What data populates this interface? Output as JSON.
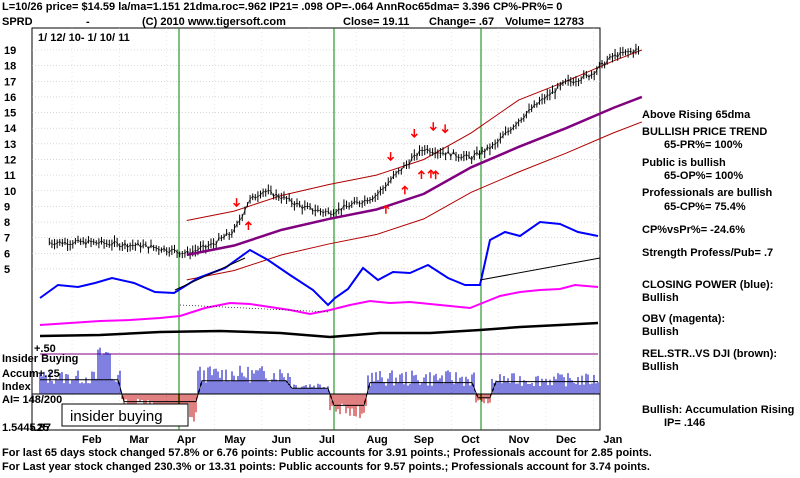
{
  "header": {
    "line1_left": "L=10/26  price= $14.59  la/ma=1.151 21dma.roc=.962 IP21= .098 OP=-.064 AnnRoc65dma= 3.396 CP%-PR%=  0",
    "symbol": "SPRD",
    "dash": "-",
    "copyright": "(C) 2010 www.tigersoft.com",
    "close": "Close=  19.11",
    "change": "Change= .67",
    "volume": "Volume= 12783",
    "date_range": "1/ 12/ 10- 1/ 10/ 11"
  },
  "right_panel": [
    "Above Rising 65dma",
    "BULLISH PRICE TREND",
    "65-PR%= 100%",
    "Public is bullish",
    "65-OP%= 100%",
    "Professionals are bullish",
    "65-CP%= 75.4%",
    "CP%vsPr%= -24.6%",
    "Strength Profess/Pub= .7",
    "CLOSING POWER (blue):",
    "Bullish",
    "OBV (magenta):",
    "Bullish",
    "REL.STR..VS DJI (brown):",
    "Bullish",
    "Bullish: Accumulation Rising",
    "IP= .146"
  ],
  "insider": {
    "title": "Insider Buying",
    "accum": "Accum",
    "index": "Index",
    "ai": "AI= 148/200",
    "plus50": "+.50",
    "plus25": "+.25",
    "minus25": "-.25",
    "legend": "insider buying",
    "overlap_label": "1.5445.87"
  },
  "bottom": {
    "line1": "For last 65 days stock changed  57.8% or  6.76 points:  Public accounts for  3.91 points.;  Professionals account for  2.85 points.",
    "line2": "For Last year stock changed  230.3% or  13.31 points:  Public accounts for  9.57 points.;  Professionals account for  3.74 points."
  },
  "chart_data": {
    "type": "line",
    "x_months": [
      "Feb",
      "Mar",
      "Apr",
      "May",
      "Jun",
      "Jul",
      "Aug",
      "Sep",
      "Oct",
      "Nov",
      "Dec",
      "Jan"
    ],
    "y_ticks": [
      5,
      6,
      7,
      8,
      9,
      10,
      11,
      12,
      13,
      14,
      15,
      16,
      17,
      18,
      19
    ],
    "ylim": [
      4.5,
      19.6
    ],
    "price_series": {
      "name": "price",
      "x": [
        0,
        0.5,
        1,
        1.5,
        2,
        2.5,
        3,
        3.3,
        3.6,
        4,
        4.5,
        5,
        5.5,
        6,
        6.5,
        7,
        7.5,
        8,
        8.5,
        9,
        9.5,
        10,
        10.5,
        11,
        11.5
      ],
      "values": [
        6.7,
        6.6,
        6.5,
        6.3,
        6.0,
        6.5,
        7.4,
        9.3,
        10.0,
        9.6,
        8.9,
        8.6,
        9.1,
        9.7,
        11.3,
        12.7,
        12.4,
        12.1,
        12.9,
        14.5,
        15.8,
        16.9,
        17.4,
        18.6,
        19.0
      ]
    },
    "ma65_series": {
      "name": "65dma",
      "x": [
        2,
        3,
        4,
        5,
        6,
        7,
        8,
        9,
        10,
        11,
        11.6
      ],
      "values": [
        5.9,
        6.5,
        7.5,
        8.2,
        8.8,
        9.8,
        11.5,
        12.8,
        14.0,
        15.3,
        16.0
      ]
    },
    "annotations": {
      "down_arrow_months": [
        3.05,
        6.3,
        6.8,
        7.2,
        7.45
      ],
      "up_arrow_months": [
        3.3,
        6.2,
        6.6,
        6.95,
        7.15,
        7.25
      ]
    },
    "accum_histogram_range": [
      -0.3,
      0.55
    ],
    "grid": true
  }
}
